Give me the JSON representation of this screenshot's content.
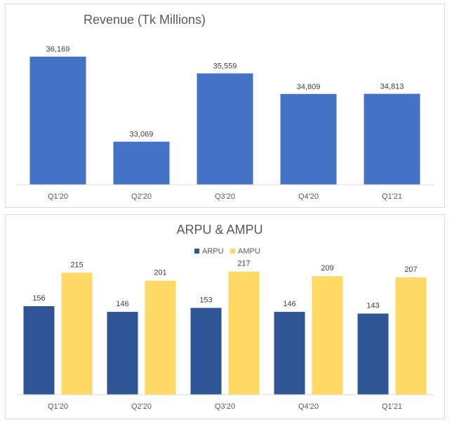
{
  "chart_data": [
    {
      "type": "bar",
      "title": "Revenue (Tk Millions)",
      "categories": [
        "Q1'20",
        "Q2'20",
        "Q3'20",
        "Q4'20",
        "Q1'21"
      ],
      "values": [
        36169,
        33069,
        35559,
        34809,
        34813
      ],
      "data_labels": [
        "36,169",
        "33,069",
        "35,559",
        "34,809",
        "34,813"
      ],
      "ylim": [
        31500,
        36800
      ],
      "grid": false,
      "colors": [
        "#4472c4"
      ]
    },
    {
      "type": "bar",
      "title": "ARPU & AMPU",
      "categories": [
        "Q1'20",
        "Q2'20",
        "Q3'20",
        "Q4'20",
        "Q1'21"
      ],
      "series": [
        {
          "name": "ARPU",
          "values": [
            156,
            146,
            153,
            146,
            143
          ],
          "color": "#2f5597"
        },
        {
          "name": "AMPU",
          "values": [
            215,
            201,
            217,
            209,
            207
          ],
          "color": "#ffd966"
        }
      ],
      "ylim": [
        0,
        260
      ],
      "legend": "top-center",
      "grid": false
    }
  ]
}
